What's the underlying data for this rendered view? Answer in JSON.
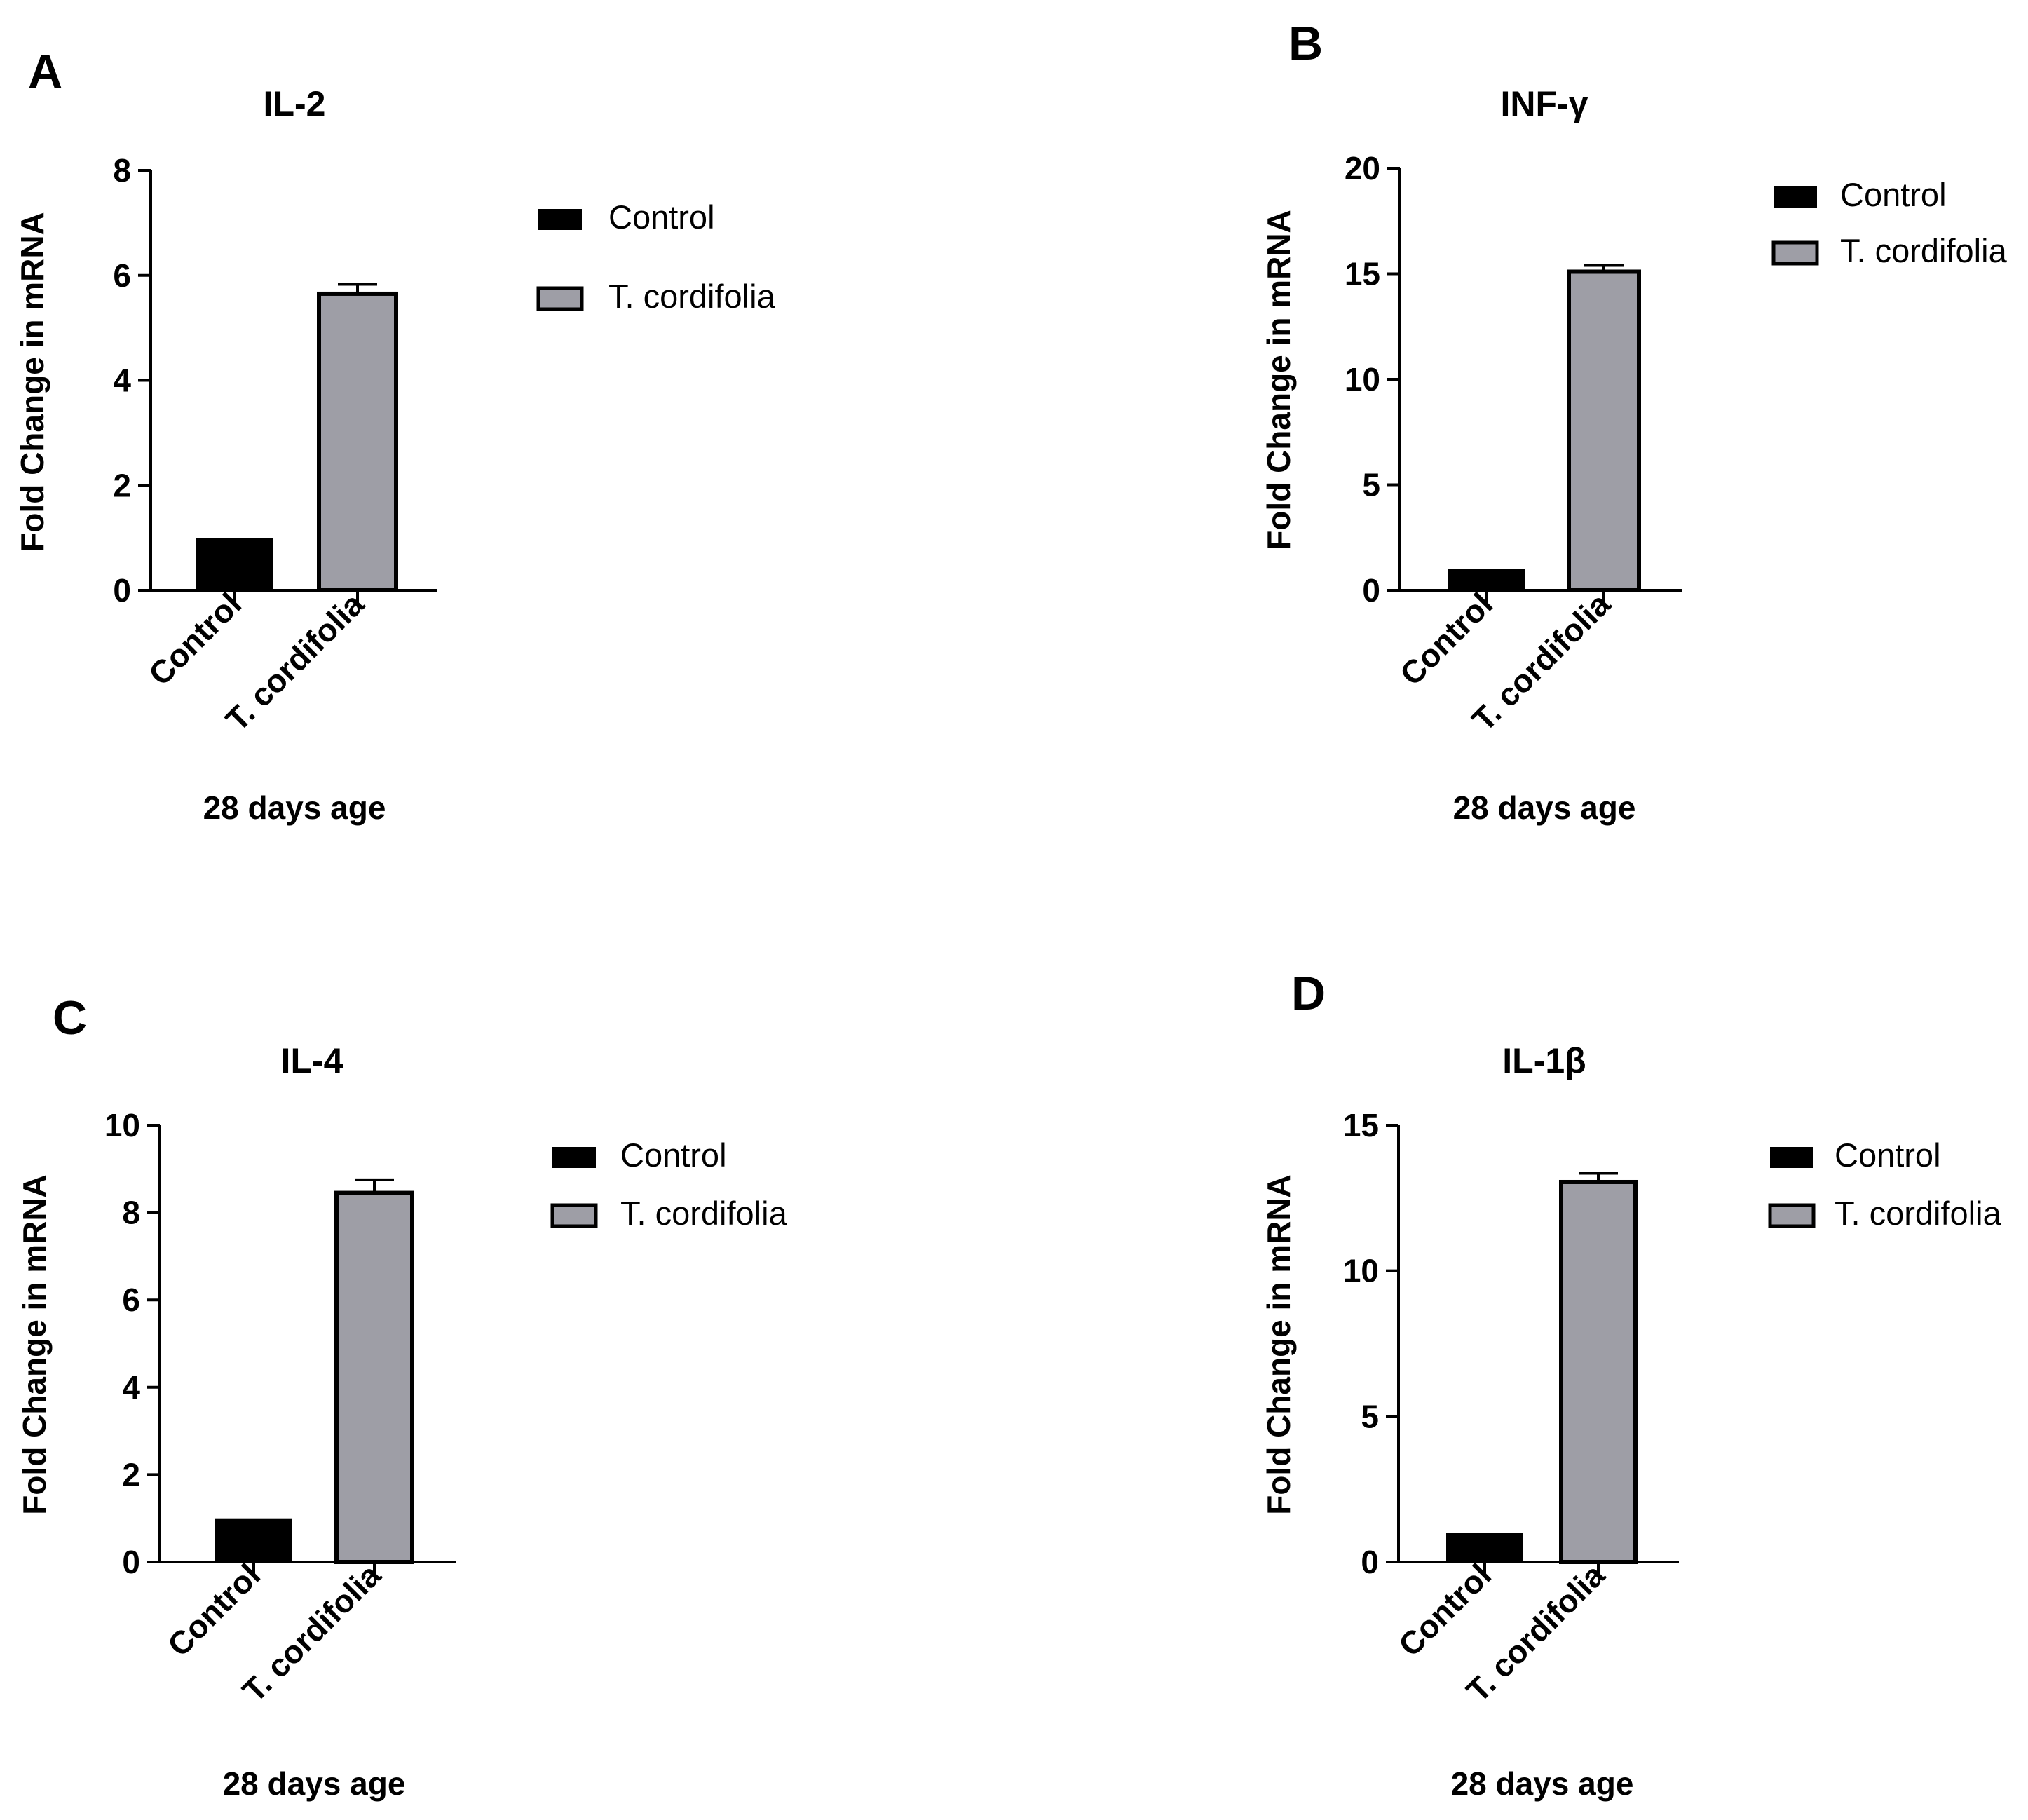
{
  "colors": {
    "control": "#000000",
    "treated": "#9e9ea6",
    "axis": "#000000",
    "background": "#ffffff"
  },
  "chart_data": [
    {
      "panel": "A",
      "type": "bar",
      "title": "IL-2",
      "xlabel": "28 days age",
      "ylabel": "Fold Change in mRNA",
      "ylim": [
        0,
        8
      ],
      "yticks": [
        "0",
        "2",
        "4",
        "6",
        "8"
      ],
      "ytick_values": [
        0,
        2,
        4,
        6,
        8
      ],
      "categories": [
        "Control",
        "T. cordifolia"
      ],
      "values": [
        1.0,
        5.65
      ],
      "errors": [
        0,
        0.18
      ],
      "legend": [
        "Control",
        "T. cordifolia"
      ],
      "legend_position": "right"
    },
    {
      "panel": "B",
      "type": "bar",
      "title": "INF-γ",
      "xlabel": "28 days age",
      "ylabel": "Fold Change in mRNA",
      "ylim": [
        0,
        20
      ],
      "yticks": [
        "0",
        "5",
        "10",
        "15",
        "20"
      ],
      "ytick_values": [
        0,
        5,
        10,
        15,
        20
      ],
      "categories": [
        "Control",
        "T. cordifolia"
      ],
      "values": [
        1.0,
        15.1
      ],
      "errors": [
        0,
        0.3
      ],
      "legend": [
        "Control",
        "T. cordifolia"
      ],
      "legend_position": "right"
    },
    {
      "panel": "C",
      "type": "bar",
      "title": "IL-4",
      "xlabel": "28 days age",
      "ylabel": "Fold Change in mRNA",
      "ylim": [
        0,
        10
      ],
      "yticks": [
        "0",
        "2",
        "4",
        "6",
        "8",
        "10"
      ],
      "ytick_values": [
        0,
        2,
        4,
        6,
        8,
        10
      ],
      "categories": [
        "Control",
        "T. cordifolia"
      ],
      "values": [
        1.0,
        8.45
      ],
      "errors": [
        0,
        0.3
      ],
      "legend": [
        "Control",
        "T. cordifolia"
      ],
      "legend_position": "right"
    },
    {
      "panel": "D",
      "type": "bar",
      "title": "IL-1β",
      "xlabel": "28 days age",
      "ylabel": "Fold Change in mRNA",
      "ylim": [
        0,
        15
      ],
      "yticks": [
        "0",
        "5",
        "10",
        "15"
      ],
      "ytick_values": [
        0,
        5,
        10,
        15
      ],
      "categories": [
        "Control",
        "T. cordifolia"
      ],
      "values": [
        1.0,
        13.05
      ],
      "errors": [
        0,
        0.3
      ],
      "legend": [
        "Control",
        "T. cordifolia"
      ],
      "legend_position": "right"
    }
  ]
}
